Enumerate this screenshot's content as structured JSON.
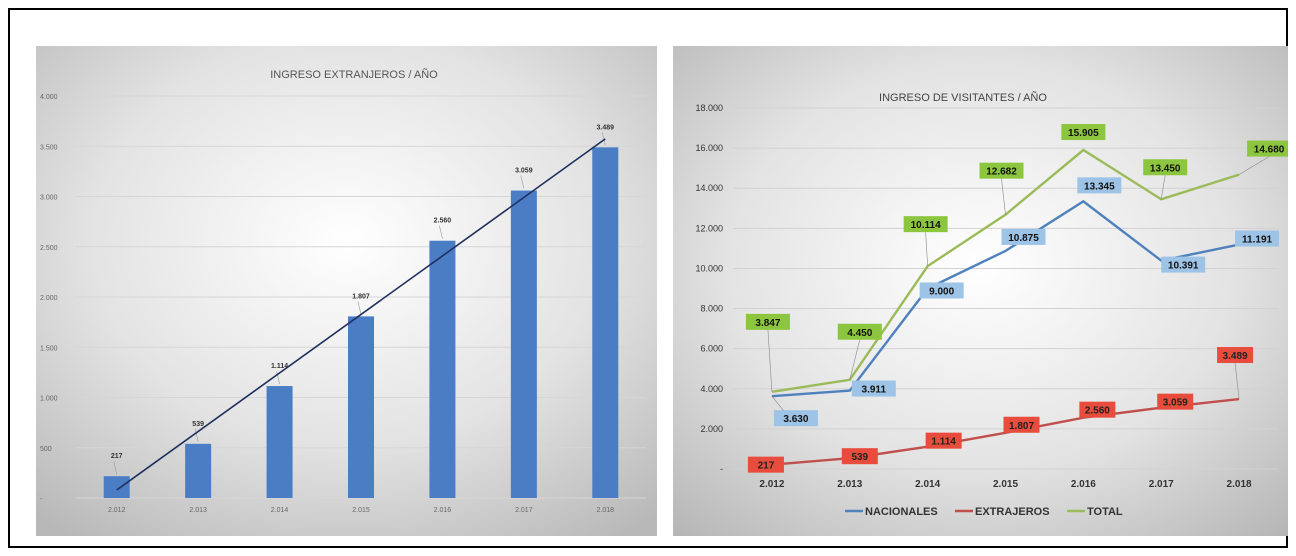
{
  "chart_data": [
    {
      "type": "bar",
      "title": "INGRESO EXTRANJEROS / AÑO",
      "categories": [
        "2.012",
        "2.013",
        "2.014",
        "2.015",
        "2.016",
        "2.017",
        "2.018"
      ],
      "values": [
        217,
        539,
        1114,
        1807,
        2560,
        3059,
        3489
      ],
      "value_labels": [
        "217",
        "539",
        "1.114",
        "1.807",
        "2.560",
        "3.059",
        "3.489"
      ],
      "ylim": [
        0,
        4000
      ],
      "y_ticks": [
        0,
        500,
        1000,
        1500,
        2000,
        2500,
        3000,
        3500,
        4000
      ],
      "y_tick_labels": [
        "-",
        "500",
        "1.000",
        "1.500",
        "2.000",
        "2.500",
        "3.000",
        "3.500",
        "4.000"
      ],
      "trendline": "linear",
      "grid": true,
      "bar_color": "#4a7dc4",
      "trend_color": "#1f2f5e"
    },
    {
      "type": "line",
      "title": "INGRESO DE VISITANTES  / AÑO",
      "categories": [
        "2.012",
        "2.013",
        "2.014",
        "2.015",
        "2.016",
        "2.017",
        "2.018"
      ],
      "ylim": [
        0,
        18000
      ],
      "y_ticks": [
        0,
        2000,
        4000,
        6000,
        8000,
        10000,
        12000,
        14000,
        16000,
        18000
      ],
      "y_tick_labels": [
        "-",
        "2.000",
        "4.000",
        "6.000",
        "8.000",
        "10.000",
        "12.000",
        "14.000",
        "16.000",
        "18.000"
      ],
      "grid": true,
      "legend_position": "bottom",
      "series": [
        {
          "name": "NACIONALES",
          "color": "#4f81bd",
          "label_fill": "#9dc3e6",
          "values": [
            3630,
            3911,
            9000,
            10875,
            13345,
            10391,
            11191
          ],
          "labels": [
            "3.630",
            "3.911",
            "9.000",
            "10.875",
            "13.345",
            "10.391",
            "11.191"
          ]
        },
        {
          "name": "EXTRAJEROS",
          "color": "#c0504d",
          "label_fill": "#e74c3c",
          "values": [
            217,
            539,
            1114,
            1807,
            2560,
            3059,
            3489
          ],
          "labels": [
            "217",
            "539",
            "1.114",
            "1.807",
            "2.560",
            "3.059",
            "3.489"
          ]
        },
        {
          "name": "TOTAL",
          "color": "#9bbb59",
          "label_fill": "#8cc63f",
          "values": [
            3847,
            4450,
            10114,
            12682,
            15905,
            13450,
            14680
          ],
          "labels": [
            "3.847",
            "4.450",
            "10.114",
            "12.682",
            "15.905",
            "13.450",
            "14.680"
          ]
        }
      ]
    }
  ]
}
